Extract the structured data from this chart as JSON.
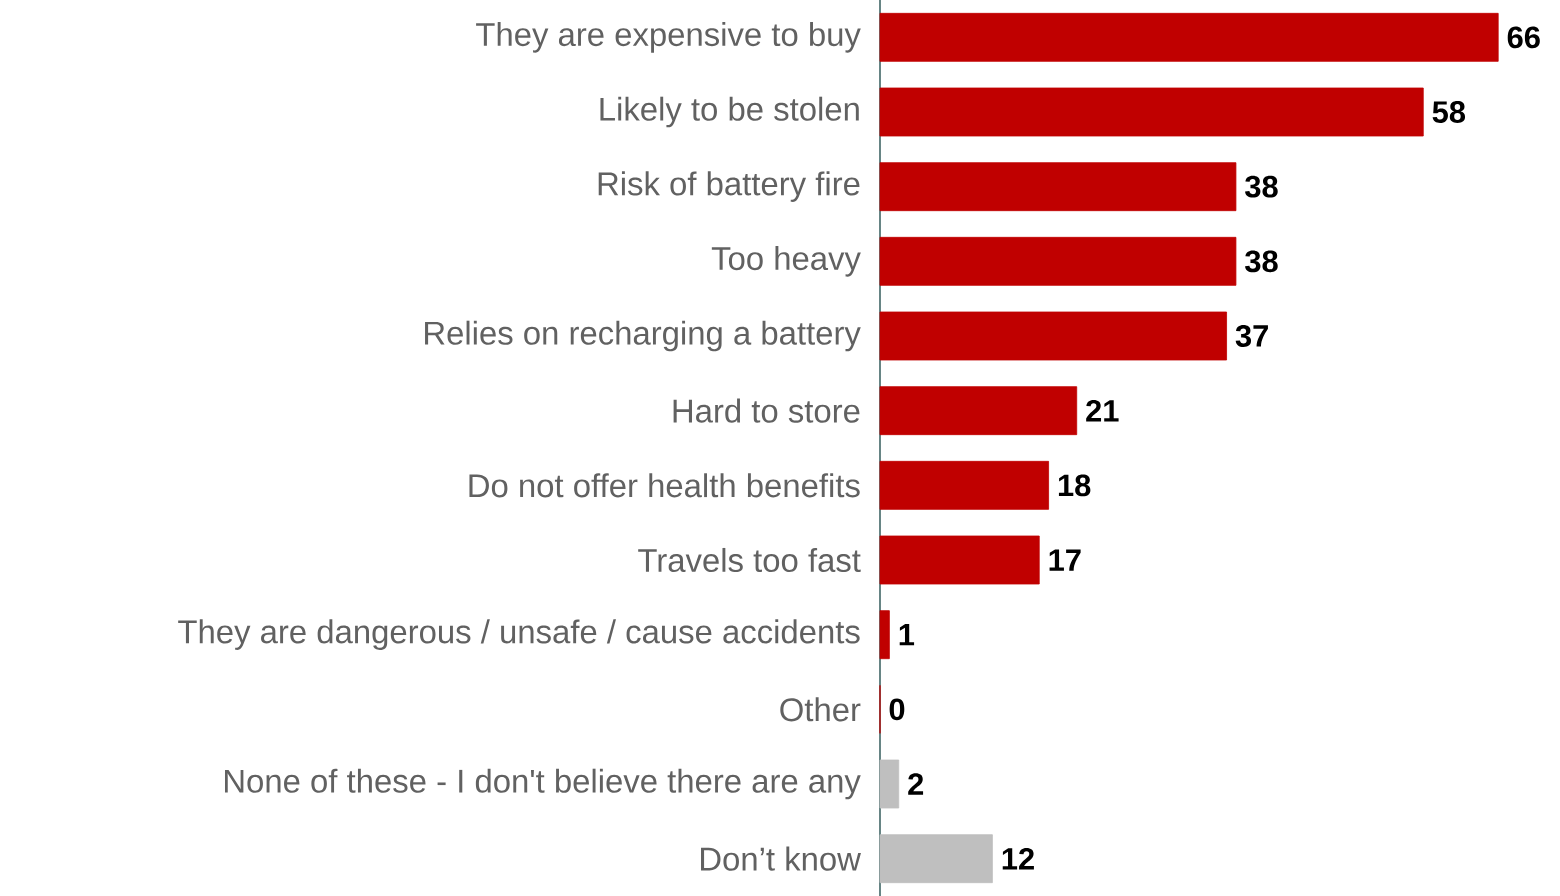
{
  "chart_data": {
    "type": "bar",
    "orientation": "horizontal",
    "data_labels": true,
    "categories": [
      "They are expensive to buy",
      "Likely to be stolen",
      "Risk of battery fire",
      "Too heavy",
      "Relies on recharging a battery",
      "Hard to store",
      "Do not offer health benefits",
      "Travels too fast",
      "They are dangerous / unsafe / cause accidents",
      "Other",
      "None of these - I don't believe there are any",
      "Don’t know"
    ],
    "values": [
      66,
      58,
      38,
      38,
      37,
      21,
      18,
      17,
      1,
      0,
      2,
      12
    ],
    "colors": [
      "#c00000",
      "#c00000",
      "#c00000",
      "#c00000",
      "#c00000",
      "#c00000",
      "#c00000",
      "#c00000",
      "#c00000",
      "#c00000",
      "#bfbfbf",
      "#bfbfbf"
    ]
  }
}
